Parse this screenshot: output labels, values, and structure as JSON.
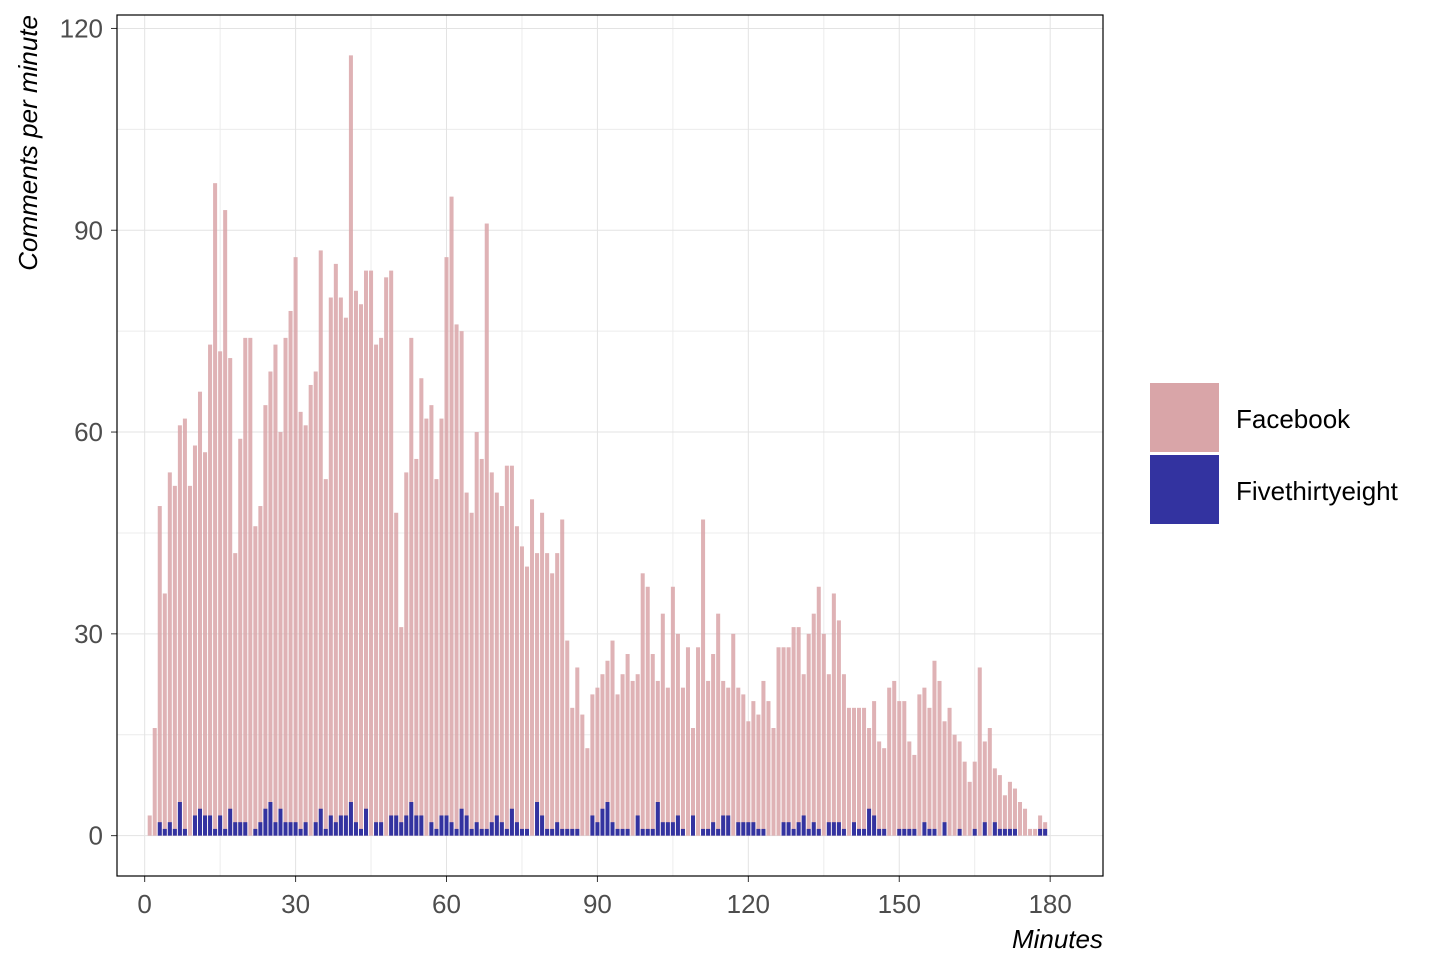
{
  "chart_data": {
    "type": "bar",
    "xlabel": "Minutes",
    "ylabel": "Comments per minute",
    "x": [
      1,
      2,
      3,
      4,
      5,
      6,
      7,
      8,
      9,
      10,
      11,
      12,
      13,
      14,
      15,
      16,
      17,
      18,
      19,
      20,
      21,
      22,
      23,
      24,
      25,
      26,
      27,
      28,
      29,
      30,
      31,
      32,
      33,
      34,
      35,
      36,
      37,
      38,
      39,
      40,
      41,
      42,
      43,
      44,
      45,
      46,
      47,
      48,
      49,
      50,
      51,
      52,
      53,
      54,
      55,
      56,
      57,
      58,
      59,
      60,
      61,
      62,
      63,
      64,
      65,
      66,
      67,
      68,
      69,
      70,
      71,
      72,
      73,
      74,
      75,
      76,
      77,
      78,
      79,
      80,
      81,
      82,
      83,
      84,
      85,
      86,
      87,
      88,
      89,
      90,
      91,
      92,
      93,
      94,
      95,
      96,
      97,
      98,
      99,
      100,
      101,
      102,
      103,
      104,
      105,
      106,
      107,
      108,
      109,
      110,
      111,
      112,
      113,
      114,
      115,
      116,
      117,
      118,
      119,
      120,
      121,
      122,
      123,
      124,
      125,
      126,
      127,
      128,
      129,
      130,
      131,
      132,
      133,
      134,
      135,
      136,
      137,
      138,
      139,
      140,
      141,
      142,
      143,
      144,
      145,
      146,
      147,
      148,
      149,
      150,
      151,
      152,
      153,
      154,
      155,
      156,
      157,
      158,
      159,
      160,
      161,
      162,
      163,
      164,
      165,
      166,
      167,
      168,
      169,
      170,
      171,
      172,
      173,
      174,
      175,
      176,
      177,
      178,
      179
    ],
    "series": [
      {
        "name": "Facebook",
        "color": "#d9a5a8",
        "values": [
          3,
          16,
          49,
          36,
          54,
          52,
          61,
          62,
          52,
          58,
          66,
          57,
          73,
          97,
          72,
          93,
          71,
          42,
          59,
          74,
          74,
          46,
          49,
          64,
          69,
          73,
          60,
          74,
          78,
          86,
          63,
          61,
          67,
          69,
          87,
          53,
          80,
          85,
          80,
          77,
          116,
          81,
          79,
          84,
          84,
          73,
          74,
          83,
          84,
          48,
          31,
          54,
          74,
          56,
          68,
          62,
          64,
          53,
          62,
          86,
          95,
          76,
          75,
          51,
          48,
          60,
          56,
          91,
          54,
          51,
          49,
          55,
          55,
          46,
          43,
          40,
          50,
          42,
          48,
          42,
          39,
          42,
          47,
          29,
          19,
          25,
          18,
          13,
          21,
          22,
          24,
          26,
          29,
          21,
          24,
          27,
          23,
          24,
          39,
          37,
          27,
          23,
          33,
          22,
          37,
          30,
          22,
          28,
          16,
          28,
          47,
          23,
          27,
          33,
          23,
          22,
          30,
          22,
          21,
          17,
          20,
          18,
          23,
          20,
          16,
          28,
          28,
          28,
          31,
          31,
          24,
          30,
          33,
          37,
          30,
          24,
          36,
          32,
          24,
          19,
          19,
          19,
          19,
          16,
          20,
          14,
          13,
          22,
          23,
          20,
          20,
          14,
          12,
          21,
          22,
          19,
          26,
          23,
          17,
          19,
          15,
          14,
          11,
          8,
          11,
          25,
          14,
          16,
          10,
          9,
          6,
          8,
          7,
          5,
          4,
          1,
          1,
          3,
          2
        ]
      },
      {
        "name": "Fivethirtyeight",
        "color": "#3333a0",
        "values": [
          0,
          0,
          2,
          1,
          2,
          1,
          5,
          1,
          0,
          3,
          4,
          3,
          3,
          1,
          3,
          1,
          4,
          2,
          2,
          2,
          0,
          1,
          2,
          4,
          5,
          2,
          4,
          2,
          2,
          2,
          1,
          2,
          0,
          2,
          4,
          1,
          3,
          2,
          3,
          3,
          5,
          2,
          1,
          4,
          0,
          2,
          2,
          0,
          3,
          3,
          2,
          3,
          5,
          3,
          3,
          0,
          2,
          1,
          3,
          3,
          2,
          1,
          4,
          3,
          1,
          2,
          1,
          1,
          2,
          3,
          2,
          1,
          4,
          2,
          1,
          1,
          0,
          5,
          3,
          1,
          1,
          2,
          1,
          1,
          1,
          1,
          0,
          0,
          3,
          2,
          4,
          5,
          2,
          1,
          1,
          1,
          0,
          3,
          1,
          1,
          1,
          5,
          2,
          2,
          2,
          3,
          1,
          0,
          3,
          0,
          1,
          1,
          2,
          1,
          3,
          3,
          0,
          2,
          2,
          2,
          2,
          1,
          1,
          0,
          0,
          0,
          2,
          2,
          1,
          2,
          3,
          1,
          2,
          1,
          0,
          2,
          2,
          2,
          1,
          0,
          2,
          1,
          1,
          4,
          3,
          1,
          1,
          0,
          0,
          1,
          1,
          1,
          1,
          0,
          2,
          1,
          1,
          0,
          2,
          0,
          0,
          1,
          0,
          0,
          1,
          0,
          2,
          0,
          2,
          1,
          1,
          1,
          1,
          0,
          0,
          0,
          0,
          1,
          1
        ]
      }
    ],
    "xlim": [
      -5.5,
      190.5
    ],
    "xticks": [
      0,
      30,
      60,
      90,
      120,
      150,
      180
    ],
    "ylim": [
      -6,
      122
    ],
    "yticks": [
      0,
      30,
      60,
      90,
      120
    ],
    "grid": true,
    "minor_grid": true,
    "legend": "right"
  }
}
